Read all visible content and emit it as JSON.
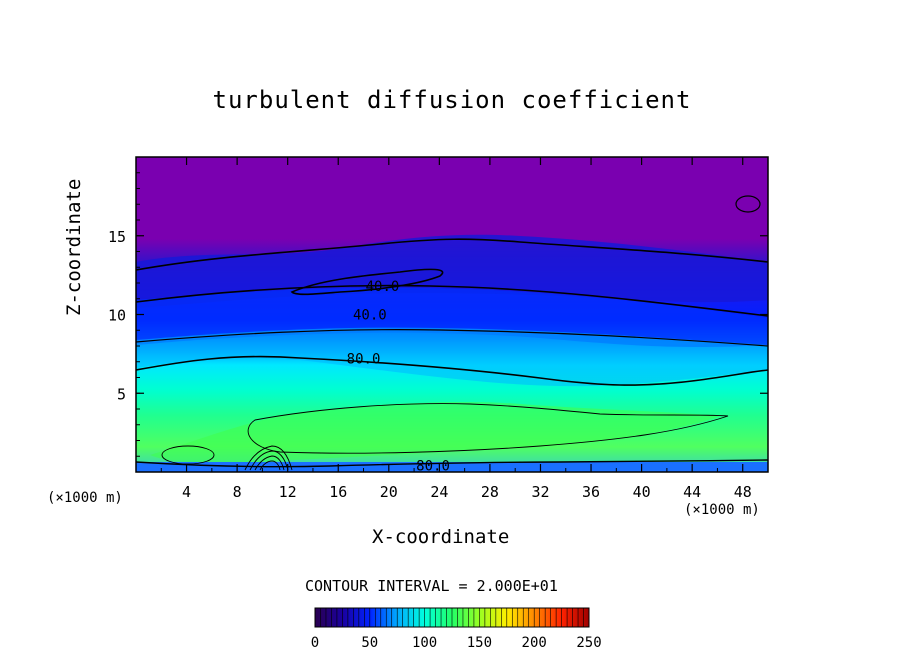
{
  "chart_data": {
    "type": "heatmap",
    "title": "turbulent diffusion coefficient",
    "xlabel": "X-coordinate",
    "ylabel": "Z-coordinate",
    "x_unit_label_left": "(×1000 m)",
    "x_unit_label_right": "(×1000 m)",
    "xlim": [
      0,
      50
    ],
    "ylim": [
      0,
      20
    ],
    "xticks": [
      4,
      8,
      12,
      16,
      20,
      24,
      28,
      32,
      36,
      40,
      44,
      48
    ],
    "yticks": [
      5,
      10,
      15
    ],
    "contour_interval_text": "CONTOUR INTERVAL = 2.000E+01",
    "contour_labels": [
      {
        "text": "40.0",
        "x": 19.5,
        "y": 11.8
      },
      {
        "text": "40.0",
        "x": 18.5,
        "y": 10.0
      },
      {
        "text": "80.0",
        "x": 18.0,
        "y": 7.2
      },
      {
        "text": "80.0",
        "x": 23.5,
        "y": 0.4
      }
    ],
    "bands": [
      {
        "z_top": 20.0,
        "value": 10
      },
      {
        "z_top": 14.5,
        "value": 40
      },
      {
        "z_top": 12.0,
        "value": 55
      },
      {
        "z_top": 10.0,
        "value": 70
      },
      {
        "z_top": 8.5,
        "value": 90
      },
      {
        "z_top": 7.0,
        "value": 110
      },
      {
        "z_top": 4.5,
        "value": 130
      },
      {
        "z_top": 2.5,
        "value": 150
      },
      {
        "z_top": 0.6,
        "value": 40
      }
    ],
    "colorbar": {
      "min": 0,
      "max": 250,
      "tick_labels": [
        "0",
        "50",
        "100",
        "150",
        "200",
        "250"
      ],
      "colors": [
        "#2a0050",
        "#1a00a0",
        "#0022ff",
        "#00aaff",
        "#00ffdd",
        "#22ff66",
        "#99ff22",
        "#ffee00",
        "#ff8800",
        "#ff2200",
        "#a00000"
      ]
    }
  }
}
